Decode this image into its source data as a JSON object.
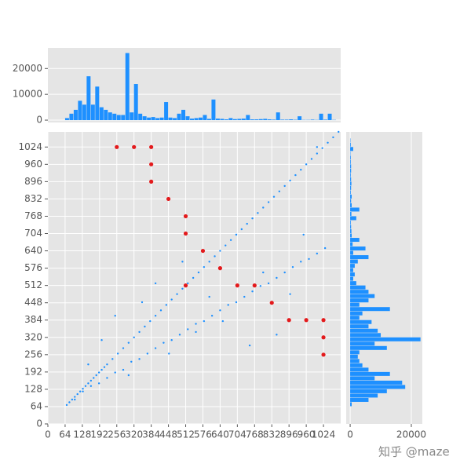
{
  "chart_data": [
    {
      "type": "scatter",
      "xlim": [
        0,
        1088
      ],
      "ylim": [
        0,
        1080
      ],
      "xticks": [
        0,
        64,
        128,
        192,
        256,
        320,
        384,
        448,
        512,
        576,
        640,
        704,
        768,
        832,
        896,
        960,
        1024
      ],
      "yticks": [
        0,
        64,
        128,
        192,
        256,
        320,
        384,
        448,
        512,
        576,
        640,
        704,
        768,
        832,
        896,
        960,
        1024
      ],
      "grid": true,
      "series": [
        {
          "color": "#1e90ff",
          "x": [
            70,
            80,
            90,
            100,
            110,
            120,
            130,
            140,
            150,
            160,
            170,
            180,
            190,
            200,
            210,
            220,
            240,
            260,
            280,
            300,
            320,
            340,
            360,
            380,
            400,
            420,
            440,
            460,
            480,
            500,
            520,
            540,
            560,
            580,
            600,
            620,
            640,
            660,
            680,
            700,
            720,
            740,
            760,
            780,
            800,
            820,
            840,
            860,
            880,
            900,
            920,
            940,
            960,
            980,
            1000,
            1020,
            1040,
            1060,
            1080,
            100,
            130,
            160,
            190,
            220,
            250,
            280,
            310,
            340,
            370,
            400,
            430,
            460,
            490,
            520,
            550,
            580,
            610,
            640,
            670,
            700,
            730,
            760,
            790,
            820,
            850,
            880,
            910,
            940,
            970,
            1000,
            1030,
            150,
            200,
            250,
            300,
            350,
            400,
            450,
            500,
            550,
            600,
            650,
            700,
            750,
            800,
            850,
            900,
            950,
            1000
          ],
          "y": [
            70,
            80,
            90,
            100,
            110,
            120,
            130,
            140,
            150,
            160,
            170,
            180,
            190,
            200,
            210,
            220,
            240,
            260,
            280,
            300,
            320,
            340,
            360,
            380,
            400,
            420,
            440,
            460,
            480,
            500,
            520,
            540,
            560,
            580,
            600,
            620,
            640,
            660,
            680,
            700,
            720,
            740,
            760,
            780,
            800,
            820,
            840,
            860,
            880,
            900,
            920,
            940,
            960,
            980,
            1000,
            1020,
            1040,
            1060,
            1080,
            90,
            120,
            140,
            150,
            170,
            190,
            200,
            230,
            240,
            260,
            280,
            300,
            310,
            330,
            350,
            370,
            380,
            400,
            420,
            440,
            450,
            470,
            490,
            510,
            520,
            540,
            560,
            580,
            600,
            610,
            630,
            650,
            220,
            310,
            400,
            180,
            450,
            520,
            260,
            600,
            340,
            470,
            380,
            700,
            290,
            560,
            330,
            480,
            700,
            1024
          ]
        },
        {
          "color": "#e31a1c",
          "x": [
            256,
            320,
            384,
            384,
            384,
            448,
            512,
            512,
            576,
            640,
            512,
            704,
            768,
            832,
            896,
            960,
            1024,
            1024,
            1024
          ],
          "y": [
            1024,
            1024,
            1024,
            960,
            896,
            832,
            768,
            704,
            640,
            576,
            512,
            512,
            512,
            448,
            384,
            384,
            384,
            320,
            256
          ]
        }
      ]
    },
    {
      "type": "histogram",
      "orientation": "vertical",
      "color": "#1e90ff",
      "ylim": [
        -900,
        28000
      ],
      "yticks": [
        0,
        10000,
        20000
      ],
      "grid": true,
      "bins": [
        0,
        16,
        32,
        48,
        64,
        80,
        96,
        112,
        128,
        144,
        160,
        176,
        192,
        208,
        224,
        240,
        256,
        272,
        288,
        304,
        320,
        336,
        352,
        368,
        384,
        400,
        416,
        432,
        448,
        464,
        480,
        496,
        512,
        528,
        544,
        560,
        576,
        592,
        608,
        624,
        640,
        656,
        672,
        688,
        704,
        720,
        736,
        752,
        768,
        784,
        800,
        816,
        832,
        848,
        864,
        880,
        896,
        912,
        928,
        944,
        960,
        976,
        992,
        1008,
        1024,
        1040,
        1056,
        1072,
        1088
      ],
      "values": [
        0,
        0,
        0,
        0,
        800,
        2500,
        4000,
        7500,
        6000,
        17000,
        6000,
        13000,
        5000,
        4000,
        3000,
        2500,
        2000,
        2000,
        26000,
        3000,
        14000,
        2500,
        1500,
        1000,
        1200,
        800,
        1000,
        7000,
        1000,
        800,
        2500,
        4000,
        1500,
        600,
        800,
        1000,
        2000,
        500,
        8000,
        600,
        500,
        300,
        800,
        400,
        500,
        600,
        2000,
        300,
        300,
        400,
        500,
        300,
        200,
        3000,
        200,
        200,
        300,
        150,
        1500,
        100,
        100,
        200,
        100,
        2500,
        200,
        2500,
        100,
        0
      ]
    },
    {
      "type": "histogram",
      "orientation": "horizontal",
      "color": "#1e90ff",
      "xlim": [
        -1300,
        23600
      ],
      "xticks": [
        0,
        20000
      ],
      "grid": true,
      "bins": [
        0,
        16,
        32,
        48,
        64,
        80,
        96,
        112,
        128,
        144,
        160,
        176,
        192,
        208,
        224,
        240,
        256,
        272,
        288,
        304,
        320,
        336,
        352,
        368,
        384,
        400,
        416,
        432,
        448,
        464,
        480,
        496,
        512,
        528,
        544,
        560,
        576,
        592,
        608,
        624,
        640,
        656,
        672,
        688,
        704,
        720,
        736,
        752,
        768,
        784,
        800,
        816,
        832,
        848,
        864,
        880,
        896,
        912,
        928,
        944,
        960,
        976,
        992,
        1008,
        1024,
        1040,
        1056,
        1072,
        1088
      ],
      "values": [
        0,
        0,
        0,
        0,
        500,
        6000,
        9000,
        12000,
        18000,
        17000,
        8000,
        13000,
        6000,
        4000,
        3000,
        2500,
        3000,
        12000,
        8000,
        23000,
        10000,
        9000,
        6000,
        7000,
        3000,
        4000,
        13000,
        3000,
        6000,
        8000,
        6000,
        5000,
        2000,
        1000,
        1500,
        1000,
        1500,
        2500,
        6000,
        1000,
        5000,
        800,
        3000,
        500,
        400,
        300,
        200,
        2000,
        400,
        3000,
        500,
        300,
        500,
        200,
        300,
        400,
        300,
        200,
        300,
        300,
        200,
        200,
        100,
        1000,
        200,
        100,
        0,
        0
      ]
    }
  ],
  "watermark": "知乎 @maze"
}
